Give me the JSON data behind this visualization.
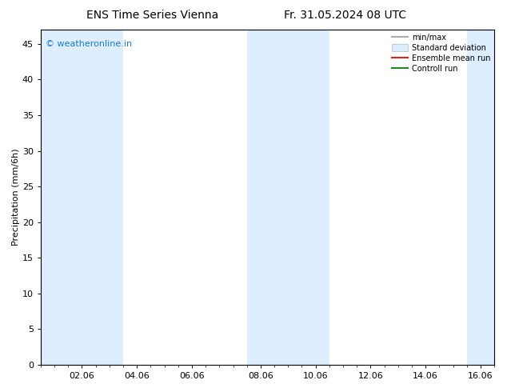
{
  "title_left": "ENS Time Series Vienna",
  "title_right": "Fr. 31.05.2024 08 UTC",
  "ylabel": "Precipitation (mm/6h)",
  "watermark": "© weatheronline.in",
  "watermark_color": "#1a7ac8",
  "xlim_start": 0.0,
  "xlim_end": 16.5,
  "ylim": [
    0,
    47
  ],
  "yticks": [
    0,
    5,
    10,
    15,
    20,
    25,
    30,
    35,
    40,
    45
  ],
  "xtick_labels": [
    "02.06",
    "04.06",
    "06.06",
    "08.06",
    "10.06",
    "12.06",
    "14.06",
    "16.06"
  ],
  "xtick_positions": [
    1.5,
    3.5,
    5.5,
    8.0,
    10.0,
    12.0,
    14.0,
    16.0
  ],
  "shaded_bands": [
    [
      0.0,
      1.5
    ],
    [
      1.5,
      3.0
    ],
    [
      7.5,
      8.5
    ],
    [
      8.5,
      10.5
    ],
    [
      15.5,
      16.5
    ]
  ],
  "band_color": "#ddeeff",
  "bg_color": "#ffffff",
  "title_fontsize": 10,
  "axis_fontsize": 8,
  "tick_fontsize": 8,
  "legend_labels": [
    "min/max",
    "Standard deviation",
    "Ensemble mean run",
    "Controll run"
  ],
  "legend_colors_line": [
    "#aaaaaa",
    "#bbccdd",
    "#dd2222",
    "#228822"
  ],
  "ylabel_fontsize": 8
}
